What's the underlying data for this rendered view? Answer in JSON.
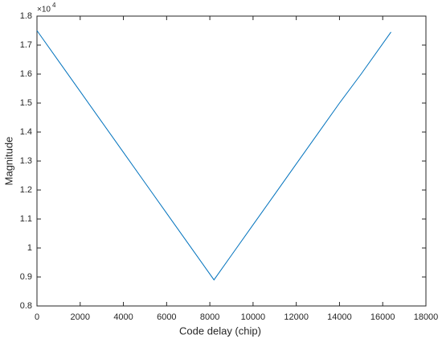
{
  "chart_data": {
    "type": "line",
    "xlabel": "Code delay (chip)",
    "ylabel": "Magnitude",
    "y_multiplier": {
      "base": "×10",
      "exponent": "4"
    },
    "x": [
      0,
      1000,
      2000,
      3000,
      4000,
      5000,
      6000,
      7000,
      8192,
      9000,
      10000,
      11000,
      12000,
      13000,
      14000,
      15000,
      16383
    ],
    "series": [
      {
        "color": "#0072bd",
        "values": [
          1.75,
          1.645,
          1.54,
          1.435,
          1.33,
          1.225,
          1.12,
          1.015,
          0.89,
          0.975,
          1.08,
          1.185,
          1.29,
          1.395,
          1.5,
          1.6,
          1.745
        ]
      }
    ],
    "xlim": [
      0,
      18000
    ],
    "xticks": [
      0,
      2000,
      4000,
      6000,
      8000,
      10000,
      12000,
      14000,
      16000,
      18000
    ],
    "ylim": [
      0.8,
      1.8
    ],
    "yticks": [
      0.8,
      0.9,
      1,
      1.1,
      1.2,
      1.3,
      1.4,
      1.5,
      1.6,
      1.7,
      1.8
    ],
    "grid": false
  }
}
